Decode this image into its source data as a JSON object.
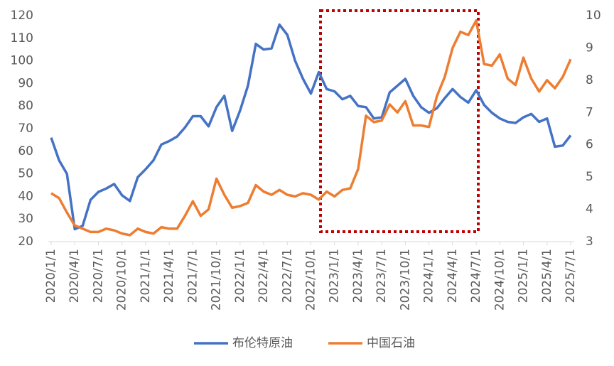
{
  "chart_data": {
    "type": "line",
    "categories": [
      "2020/1/1",
      null,
      null,
      "2020/4/1",
      null,
      null,
      "2020/7/1",
      null,
      null,
      "2020/10/1",
      null,
      null,
      "2021/1/1",
      null,
      null,
      "2021/4/1",
      null,
      null,
      "2021/7/1",
      null,
      null,
      "2021/10/1",
      null,
      null,
      "2022/1/1",
      null,
      null,
      "2022/4/1",
      null,
      null,
      "2022/7/1",
      null,
      null,
      "2022/10/1",
      null,
      null,
      "2023/1/1",
      null,
      null,
      "2023/4/1",
      null,
      null,
      "2023/7/1",
      null,
      null,
      "2023/10/1",
      null,
      null,
      "2024/1/1",
      null,
      null,
      "2024/4/1",
      null,
      null,
      "2024/7/1",
      null,
      null,
      "2024/10/1",
      null,
      null,
      "2025/1/1",
      null,
      null,
      "2025/4/1",
      null,
      null,
      "2025/7/1"
    ],
    "series": [
      {
        "name": "布伦特原油",
        "color": "#4472c4",
        "values": [
          66,
          56,
          50,
          25.5,
          27,
          38.5,
          42,
          43.5,
          45.5,
          40.5,
          38,
          48.5,
          52,
          56,
          63,
          64.5,
          66.5,
          70.5,
          75.5,
          75.5,
          71,
          79.5,
          84.5,
          69,
          78,
          89,
          107.5,
          105,
          105.5,
          116,
          111.5,
          100,
          92,
          85.5,
          95,
          87.5,
          86.5,
          83,
          84.5,
          80,
          79.5,
          74.5,
          75,
          86,
          89,
          92,
          84.5,
          79.5,
          77,
          79,
          83.5,
          87.5,
          84,
          81.5,
          87,
          80.5,
          77,
          74.5,
          73,
          72.5,
          75,
          76.5,
          73,
          74.5,
          62,
          62.5,
          67
        ]
      },
      {
        "name": "中国石油",
        "color": "#ed7d31",
        "axis": "y2",
        "values": [
          4.5,
          4.35,
          3.9,
          3.5,
          3.4,
          3.3,
          3.3,
          3.4,
          3.35,
          3.25,
          3.2,
          3.4,
          3.3,
          3.25,
          3.45,
          3.4,
          3.4,
          3.8,
          4.25,
          3.8,
          4.0,
          4.95,
          4.45,
          4.05,
          4.1,
          4.2,
          4.75,
          4.55,
          4.45,
          4.6,
          4.45,
          4.4,
          4.5,
          4.45,
          4.3,
          4.55,
          4.4,
          4.6,
          4.65,
          5.25,
          6.9,
          6.7,
          6.75,
          7.25,
          7.0,
          7.35,
          6.6,
          6.6,
          6.55,
          7.5,
          8.1,
          9.0,
          9.5,
          9.4,
          9.85,
          8.5,
          8.45,
          8.8,
          8.05,
          7.85,
          8.7,
          8.05,
          7.65,
          8.0,
          7.75,
          8.1,
          8.65
        ]
      }
    ],
    "ylim": [
      20,
      120
    ],
    "yticks": [
      20,
      30,
      40,
      50,
      60,
      70,
      80,
      90,
      100,
      110,
      120
    ],
    "y2lim": [
      3,
      10
    ],
    "y2ticks": [
      3,
      4,
      5,
      6,
      7,
      8,
      9,
      10
    ],
    "grid": false,
    "legend": "bottom"
  }
}
